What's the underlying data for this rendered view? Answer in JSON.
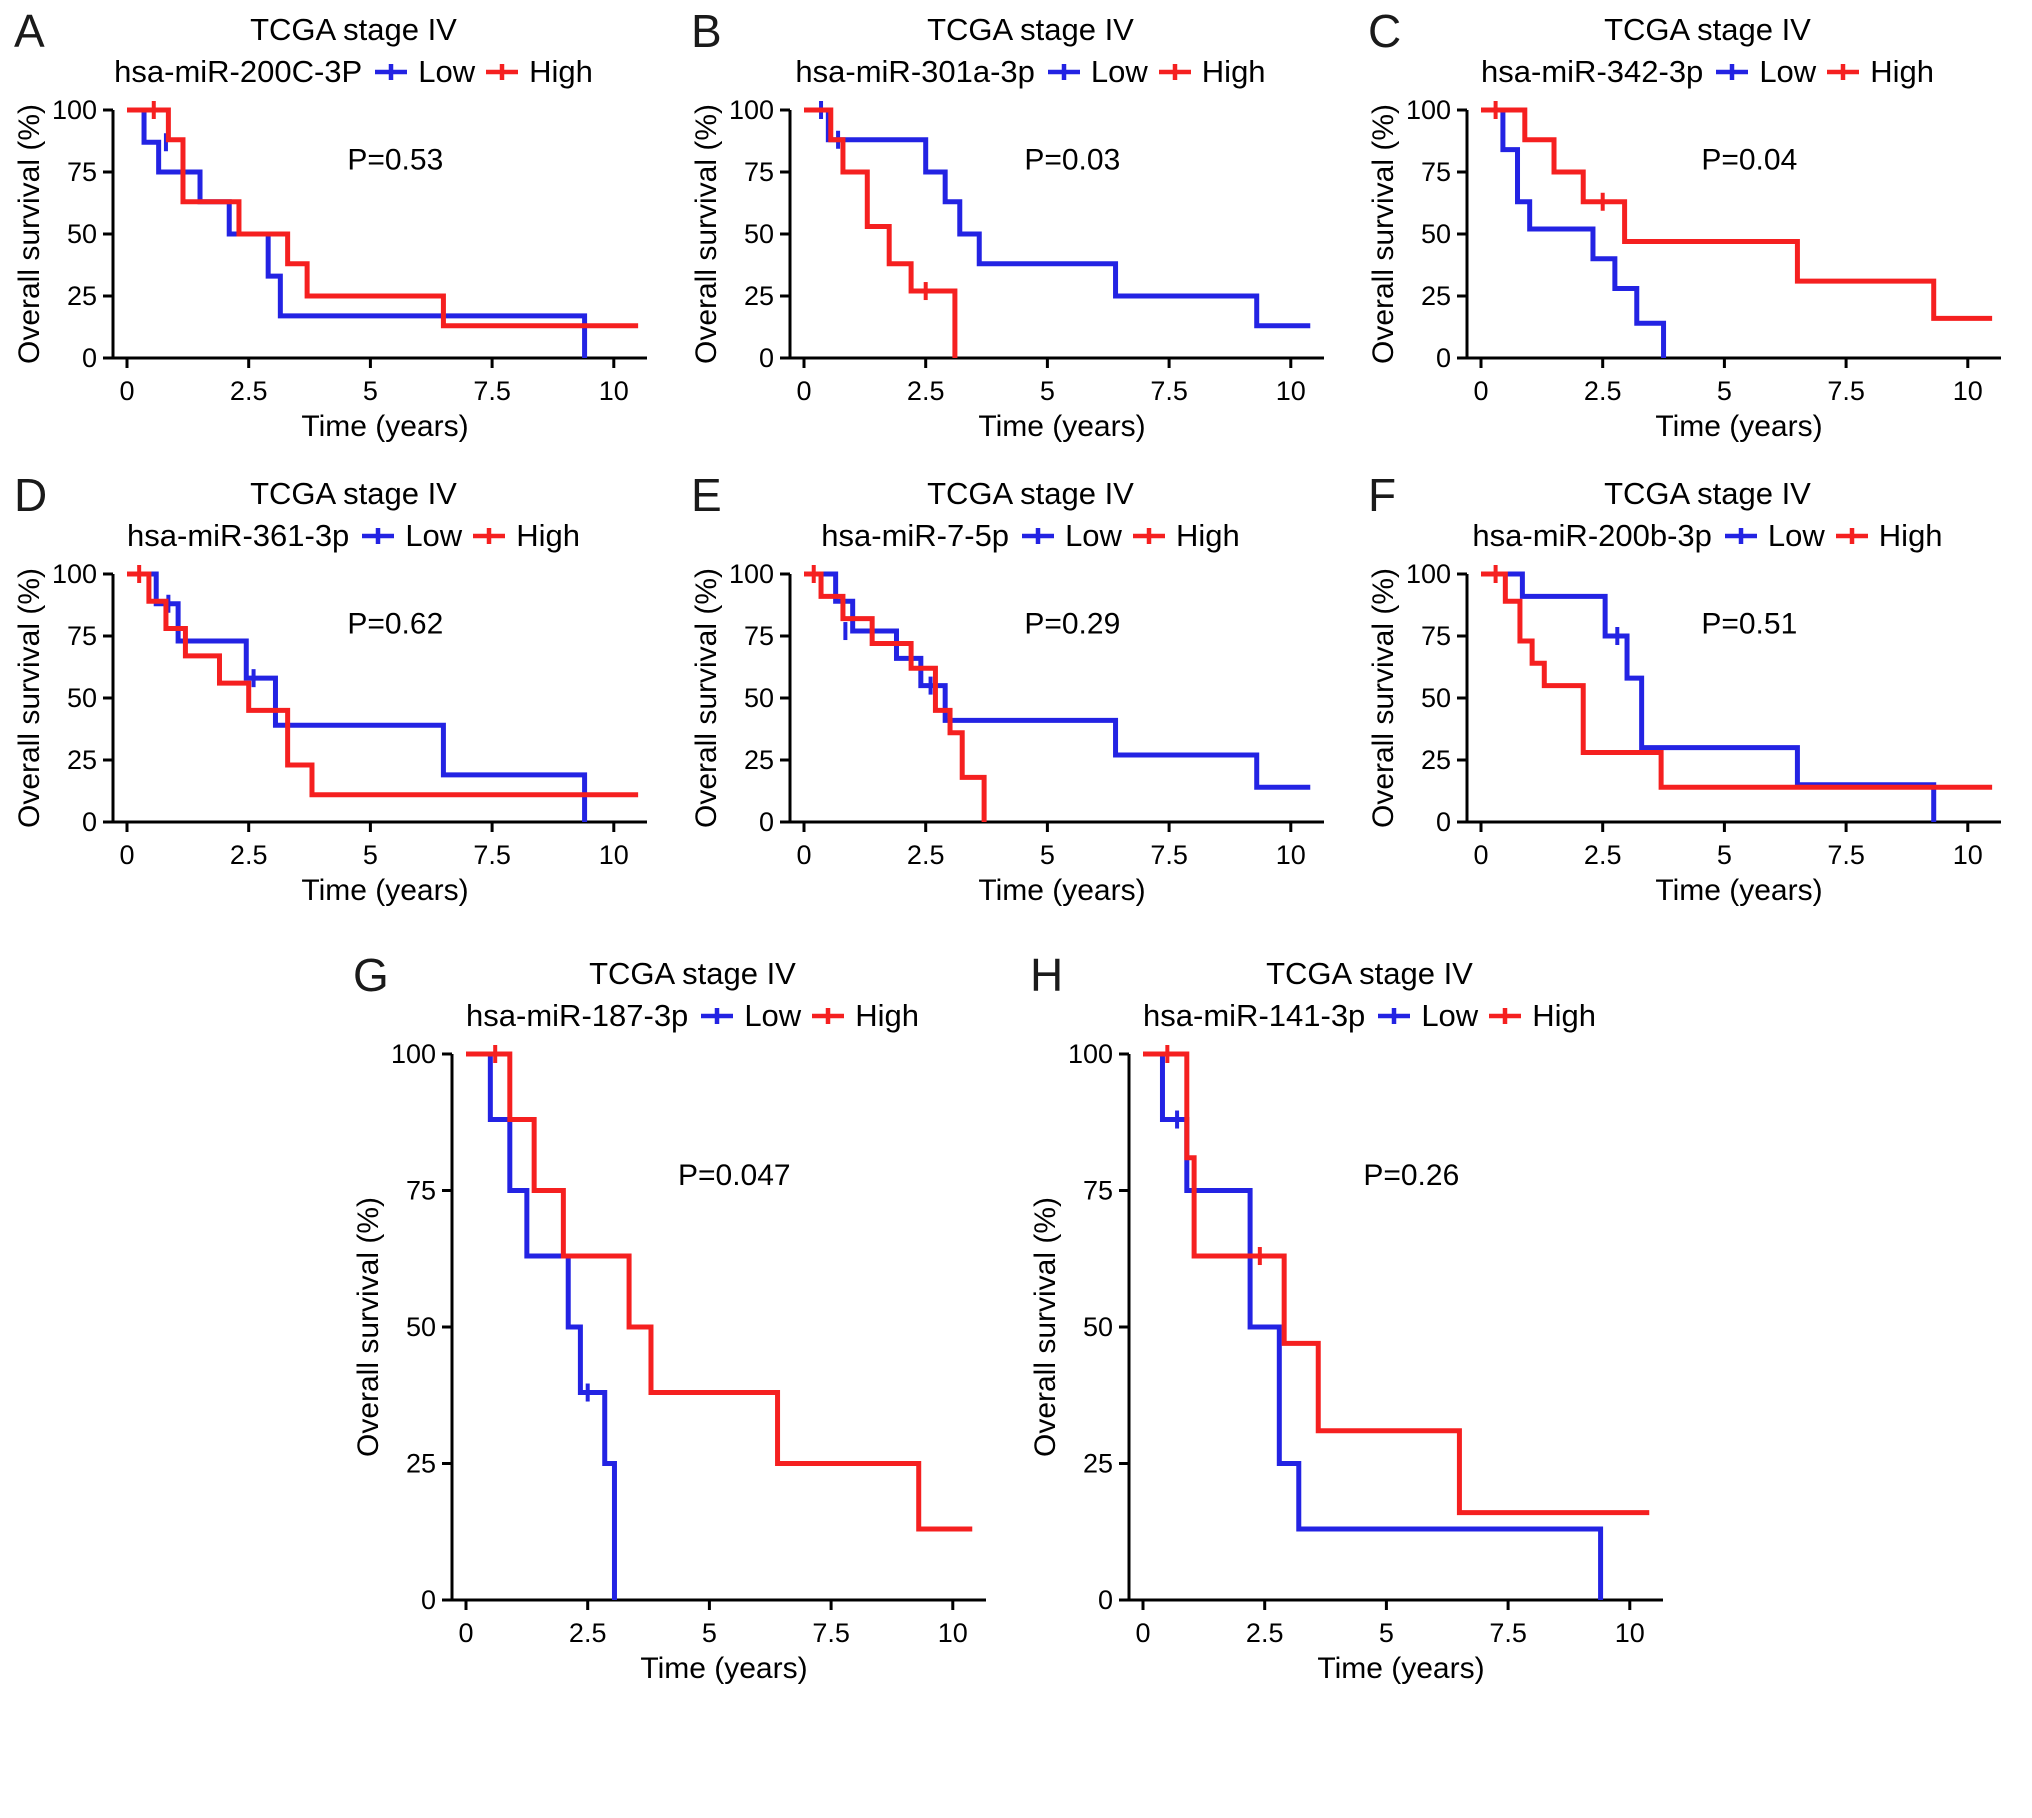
{
  "figure": {
    "background": "#ffffff",
    "text_color": "#000000"
  },
  "colors": {
    "low": "#2323E3",
    "high": "#F52020"
  },
  "legend": {
    "low_label": "Low",
    "high_label": "High"
  },
  "chart_data": [
    {
      "type": "km_step",
      "panel_letter": "A",
      "title": "TCGA stage IV",
      "subtitle": "hsa-miR-200C-3P",
      "p_label": "P=0.53",
      "xlabel": "Time (years)",
      "ylabel": "Overall survival (%)",
      "xlim": [
        0,
        10.6
      ],
      "ylim": [
        0,
        100
      ],
      "xticks": [
        0,
        2.5,
        5,
        7.5,
        10
      ],
      "yticks": [
        0,
        25,
        50,
        75,
        100
      ],
      "series": [
        {
          "name": "Low",
          "steps": [
            [
              0.35,
              87
            ],
            [
              0.65,
              75
            ],
            [
              1.5,
              63
            ],
            [
              2.1,
              50
            ],
            [
              2.9,
              33
            ],
            [
              3.15,
              17
            ],
            [
              9.4,
              0
            ]
          ],
          "end": 9.4,
          "censors": [
            [
              0.8,
              87
            ]
          ]
        },
        {
          "name": "High",
          "steps": [
            [
              0.85,
              88
            ],
            [
              1.15,
              63
            ],
            [
              2.3,
              50
            ],
            [
              3.3,
              38
            ],
            [
              3.7,
              25
            ],
            [
              6.5,
              13
            ]
          ],
          "end": 10.5,
          "censors": [
            [
              0.55,
              100
            ]
          ]
        }
      ]
    },
    {
      "type": "km_step",
      "panel_letter": "B",
      "title": "TCGA stage IV",
      "subtitle": "hsa-miR-301a-3p",
      "p_label": "P=0.03",
      "xlabel": "Time (years)",
      "ylabel": "Overall survival (%)",
      "xlim": [
        0,
        10.6
      ],
      "ylim": [
        0,
        100
      ],
      "xticks": [
        0,
        2.5,
        5,
        7.5,
        10
      ],
      "yticks": [
        0,
        25,
        50,
        75,
        100
      ],
      "series": [
        {
          "name": "Low",
          "steps": [
            [
              0.5,
              88
            ],
            [
              2.5,
              75
            ],
            [
              2.9,
              63
            ],
            [
              3.2,
              50
            ],
            [
              3.6,
              38
            ],
            [
              6.4,
              25
            ],
            [
              9.3,
              13
            ]
          ],
          "end": 10.4,
          "censors": [
            [
              0.35,
              100
            ],
            [
              0.7,
              88
            ]
          ]
        },
        {
          "name": "High",
          "steps": [
            [
              0.55,
              88
            ],
            [
              0.8,
              75
            ],
            [
              1.3,
              53
            ],
            [
              1.75,
              38
            ],
            [
              2.2,
              27
            ],
            [
              3.1,
              0
            ]
          ],
          "end": 3.1,
          "censors": [
            [
              2.5,
              27
            ]
          ]
        }
      ]
    },
    {
      "type": "km_step",
      "panel_letter": "C",
      "title": "TCGA stage IV",
      "subtitle": "hsa-miR-342-3p",
      "p_label": "P=0.04",
      "xlabel": "Time (years)",
      "ylabel": "Overall survival (%)",
      "xlim": [
        0,
        10.6
      ],
      "ylim": [
        0,
        100
      ],
      "xticks": [
        0,
        2.5,
        5,
        7.5,
        10
      ],
      "yticks": [
        0,
        25,
        50,
        75,
        100
      ],
      "series": [
        {
          "name": "Low",
          "steps": [
            [
              0.45,
              84
            ],
            [
              0.75,
              63
            ],
            [
              1.0,
              52
            ],
            [
              2.3,
              40
            ],
            [
              2.75,
              28
            ],
            [
              3.2,
              14
            ],
            [
              3.75,
              0
            ]
          ],
          "end": 3.75,
          "censors": []
        },
        {
          "name": "High",
          "steps": [
            [
              0.9,
              88
            ],
            [
              1.5,
              75
            ],
            [
              2.1,
              63
            ],
            [
              2.95,
              47
            ],
            [
              6.5,
              31
            ],
            [
              9.3,
              16
            ]
          ],
          "end": 10.5,
          "censors": [
            [
              0.3,
              100
            ],
            [
              2.5,
              63
            ]
          ]
        }
      ]
    },
    {
      "type": "km_step",
      "panel_letter": "D",
      "title": "TCGA stage IV",
      "subtitle": "hsa-miR-361-3p",
      "p_label": "P=0.62",
      "xlabel": "Time (years)",
      "ylabel": "Overall survival (%)",
      "xlim": [
        0,
        10.6
      ],
      "ylim": [
        0,
        100
      ],
      "xticks": [
        0,
        2.5,
        5,
        7.5,
        10
      ],
      "yticks": [
        0,
        25,
        50,
        75,
        100
      ],
      "series": [
        {
          "name": "Low",
          "steps": [
            [
              0.6,
              88
            ],
            [
              1.05,
              73
            ],
            [
              2.45,
              58
            ],
            [
              3.05,
              39
            ],
            [
              6.5,
              19
            ],
            [
              9.4,
              0
            ]
          ],
          "end": 9.4,
          "censors": [
            [
              0.85,
              88
            ],
            [
              2.6,
              58
            ]
          ]
        },
        {
          "name": "High",
          "steps": [
            [
              0.45,
              89
            ],
            [
              0.8,
              78
            ],
            [
              1.2,
              67
            ],
            [
              1.9,
              56
            ],
            [
              2.5,
              45
            ],
            [
              3.3,
              23
            ],
            [
              3.8,
              11
            ]
          ],
          "end": 10.5,
          "censors": [
            [
              0.25,
              100
            ]
          ]
        }
      ]
    },
    {
      "type": "km_step",
      "panel_letter": "E",
      "title": "TCGA stage IV",
      "subtitle": "hsa-miR-7-5p",
      "p_label": "P=0.29",
      "xlabel": "Time (years)",
      "ylabel": "Overall survival (%)",
      "xlim": [
        0,
        10.6
      ],
      "ylim": [
        0,
        100
      ],
      "xticks": [
        0,
        2.5,
        5,
        7.5,
        10
      ],
      "yticks": [
        0,
        25,
        50,
        75,
        100
      ],
      "series": [
        {
          "name": "Low",
          "steps": [
            [
              0.65,
              89
            ],
            [
              1.0,
              77
            ],
            [
              1.9,
              66
            ],
            [
              2.4,
              55
            ],
            [
              2.9,
              41
            ],
            [
              6.4,
              27
            ],
            [
              9.3,
              14
            ]
          ],
          "end": 10.4,
          "censors": [
            [
              0.85,
              77
            ],
            [
              2.6,
              55
            ]
          ]
        },
        {
          "name": "High",
          "steps": [
            [
              0.35,
              91
            ],
            [
              0.8,
              82
            ],
            [
              1.4,
              72
            ],
            [
              2.2,
              62
            ],
            [
              2.7,
              45
            ],
            [
              3.0,
              36
            ],
            [
              3.25,
              18
            ],
            [
              3.7,
              0
            ]
          ],
          "end": 3.7,
          "censors": [
            [
              0.2,
              100
            ]
          ]
        }
      ]
    },
    {
      "type": "km_step",
      "panel_letter": "F",
      "title": "TCGA stage IV",
      "subtitle": "hsa-miR-200b-3p",
      "p_label": "P=0.51",
      "xlabel": "Time (years)",
      "ylabel": "Overall survival (%)",
      "xlim": [
        0,
        10.6
      ],
      "ylim": [
        0,
        100
      ],
      "xticks": [
        0,
        2.5,
        5,
        7.5,
        10
      ],
      "yticks": [
        0,
        25,
        50,
        75,
        100
      ],
      "series": [
        {
          "name": "Low",
          "steps": [
            [
              0.85,
              91
            ],
            [
              2.55,
              75
            ],
            [
              3.0,
              58
            ],
            [
              3.3,
              30
            ],
            [
              6.5,
              15
            ],
            [
              9.3,
              0
            ]
          ],
          "end": 9.3,
          "censors": [
            [
              2.8,
              75
            ]
          ]
        },
        {
          "name": "High",
          "steps": [
            [
              0.5,
              89
            ],
            [
              0.8,
              73
            ],
            [
              1.05,
              64
            ],
            [
              1.3,
              55
            ],
            [
              2.1,
              28
            ],
            [
              3.7,
              14
            ]
          ],
          "end": 10.5,
          "censors": [
            [
              0.3,
              100
            ]
          ]
        }
      ]
    },
    {
      "type": "km_step",
      "panel_letter": "G",
      "title": "TCGA stage IV",
      "subtitle": "hsa-miR-187-3p",
      "p_label": "P=0.047",
      "xlabel": "Time (years)",
      "ylabel": "Overall survival (%)",
      "xlim": [
        0,
        10.6
      ],
      "ylim": [
        0,
        100
      ],
      "xticks": [
        0,
        2.5,
        5,
        7.5,
        10
      ],
      "yticks": [
        0,
        25,
        50,
        75,
        100
      ],
      "series": [
        {
          "name": "Low",
          "steps": [
            [
              0.5,
              88
            ],
            [
              0.9,
              75
            ],
            [
              1.25,
              63
            ],
            [
              2.1,
              50
            ],
            [
              2.35,
              38
            ],
            [
              2.85,
              25
            ],
            [
              3.05,
              0
            ]
          ],
          "end": 3.05,
          "censors": [
            [
              2.5,
              38
            ]
          ]
        },
        {
          "name": "High",
          "steps": [
            [
              0.9,
              88
            ],
            [
              1.4,
              75
            ],
            [
              2.0,
              63
            ],
            [
              3.35,
              50
            ],
            [
              3.8,
              38
            ],
            [
              6.4,
              25
            ],
            [
              9.3,
              13
            ]
          ],
          "end": 10.4,
          "censors": [
            [
              0.6,
              100
            ]
          ]
        }
      ]
    },
    {
      "type": "km_step",
      "panel_letter": "H",
      "title": "TCGA stage IV",
      "subtitle": "hsa-miR-141-3p",
      "p_label": "P=0.26",
      "xlabel": "Time (years)",
      "ylabel": "Overall survival (%)",
      "xlim": [
        0,
        10.6
      ],
      "ylim": [
        0,
        100
      ],
      "xticks": [
        0,
        2.5,
        5,
        7.5,
        10
      ],
      "yticks": [
        0,
        25,
        50,
        75,
        100
      ],
      "series": [
        {
          "name": "Low",
          "steps": [
            [
              0.4,
              88
            ],
            [
              0.9,
              75
            ],
            [
              2.2,
              50
            ],
            [
              2.8,
              25
            ],
            [
              3.2,
              13
            ],
            [
              9.4,
              0
            ]
          ],
          "end": 9.4,
          "censors": [
            [
              0.7,
              88
            ]
          ]
        },
        {
          "name": "High",
          "steps": [
            [
              0.9,
              81
            ],
            [
              1.05,
              63
            ],
            [
              2.9,
              47
            ],
            [
              3.6,
              31
            ],
            [
              6.5,
              16
            ]
          ],
          "end": 10.4,
          "censors": [
            [
              0.5,
              100
            ],
            [
              2.4,
              63
            ]
          ]
        }
      ]
    }
  ]
}
